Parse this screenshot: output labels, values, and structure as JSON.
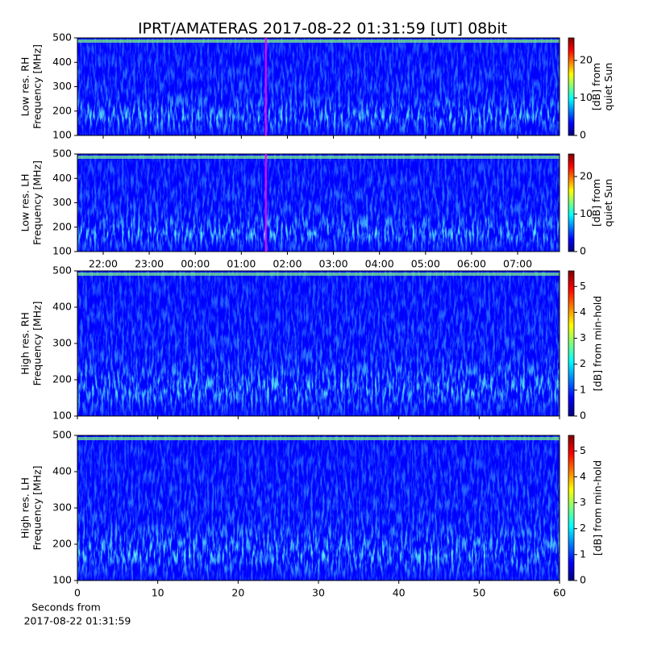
{
  "title": "IPRT/AMATERAS 2017-08-22 01:31:59 [UT]   08bit",
  "chart_data": [
    {
      "type": "heatmap",
      "ylabel": [
        "Low res. RH",
        "Frequency [MHz]"
      ],
      "ylim": [
        100,
        500
      ],
      "yticks": [
        100,
        200,
        300,
        400,
        500
      ],
      "xlim": [
        21.44,
        31.91
      ],
      "cursor": 25.533,
      "cursor_color": "#ff00ff",
      "colormap": "jet",
      "colorbar": {
        "label": [
          "[dB] from",
          "quiet Sun"
        ],
        "lim": [
          0,
          26
        ],
        "ticks": [
          0,
          10,
          20
        ]
      }
    },
    {
      "type": "heatmap",
      "ylabel": [
        "Low res. LH",
        "Frequency [MHz]"
      ],
      "ylim": [
        100,
        500
      ],
      "yticks": [
        100,
        200,
        300,
        400,
        500
      ],
      "xlim": [
        21.44,
        31.91
      ],
      "xticks": [
        {
          "value": 22,
          "label": "22:00"
        },
        {
          "value": 23,
          "label": "23:00"
        },
        {
          "value": 24,
          "label": "00:00"
        },
        {
          "value": 25,
          "label": "01:00"
        },
        {
          "value": 26,
          "label": "02:00"
        },
        {
          "value": 27,
          "label": "03:00"
        },
        {
          "value": 28,
          "label": "04:00"
        },
        {
          "value": 29,
          "label": "05:00"
        },
        {
          "value": 30,
          "label": "06:00"
        },
        {
          "value": 31,
          "label": "07:00"
        }
      ],
      "cursor": 25.533,
      "cursor_color": "#ff00ff",
      "colormap": "jet",
      "colorbar": {
        "label": [
          "[dB] from",
          "quiet Sun"
        ],
        "lim": [
          0,
          26
        ],
        "ticks": [
          0,
          10,
          20
        ]
      }
    },
    {
      "type": "heatmap",
      "ylabel": [
        "High res. RH",
        "Frequency [MHz]"
      ],
      "ylim": [
        100,
        500
      ],
      "yticks": [
        100,
        200,
        300,
        400,
        500
      ],
      "xlim": [
        0,
        60
      ],
      "colormap": "jet",
      "colorbar": {
        "label": [
          "[dB] from min-hold"
        ],
        "lim": [
          0,
          5.6
        ],
        "ticks": [
          0,
          1,
          2,
          3,
          4,
          5
        ]
      }
    },
    {
      "type": "heatmap",
      "ylabel": [
        "High res. LH",
        "Frequency [MHz]"
      ],
      "ylim": [
        100,
        500
      ],
      "yticks": [
        100,
        200,
        300,
        400,
        500
      ],
      "xlim": [
        0,
        60
      ],
      "xticks": [
        0,
        10,
        20,
        30,
        40,
        50,
        60
      ],
      "xlabel": [
        "Seconds from",
        "2017-08-22 01:31:59"
      ],
      "colormap": "jet",
      "colorbar": {
        "label": [
          "[dB] from min-hold"
        ],
        "lim": [
          0,
          5.6
        ],
        "ticks": [
          0,
          1,
          2,
          3,
          4,
          5
        ]
      }
    }
  ]
}
